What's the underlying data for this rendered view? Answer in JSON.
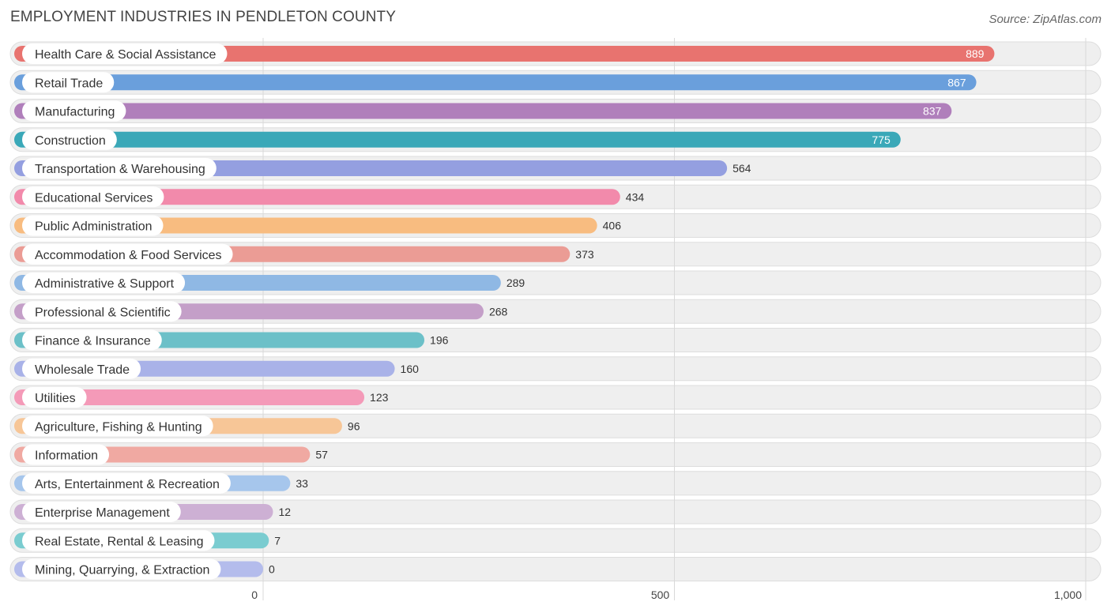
{
  "chart_data": {
    "type": "bar",
    "orientation": "horizontal",
    "title": "EMPLOYMENT INDUSTRIES IN PENDLETON COUNTY",
    "source": "Source: ZipAtlas.com",
    "xlim": [
      0,
      1000
    ],
    "ticks": [
      {
        "value": 0,
        "label": "0"
      },
      {
        "value": 500,
        "label": "500"
      },
      {
        "value": 1000,
        "label": "1,000"
      }
    ],
    "categories": [
      "Health Care & Social Assistance",
      "Retail Trade",
      "Manufacturing",
      "Construction",
      "Transportation & Warehousing",
      "Educational Services",
      "Public Administration",
      "Accommodation & Food Services",
      "Administrative & Support",
      "Professional & Scientific",
      "Finance & Insurance",
      "Wholesale Trade",
      "Utilities",
      "Agriculture, Fishing & Hunting",
      "Information",
      "Arts, Entertainment & Recreation",
      "Enterprise Management",
      "Real Estate, Rental & Leasing",
      "Mining, Quarrying, & Extraction"
    ],
    "values": [
      889,
      867,
      837,
      775,
      564,
      434,
      406,
      373,
      289,
      268,
      196,
      160,
      123,
      96,
      57,
      33,
      12,
      7,
      0
    ],
    "colors": [
      "#e8736f",
      "#6a9fdc",
      "#b07fbb",
      "#3aa8b8",
      "#949fe0",
      "#f28aab",
      "#f8bc80",
      "#eb9c95",
      "#8fb8e4",
      "#c49fc8",
      "#6cc0c8",
      "#a9b2e8",
      "#f49ab8",
      "#f7c697",
      "#f0a9a2",
      "#a6c6ec",
      "#cdb0d4",
      "#7accd0",
      "#b4bcec"
    ]
  }
}
